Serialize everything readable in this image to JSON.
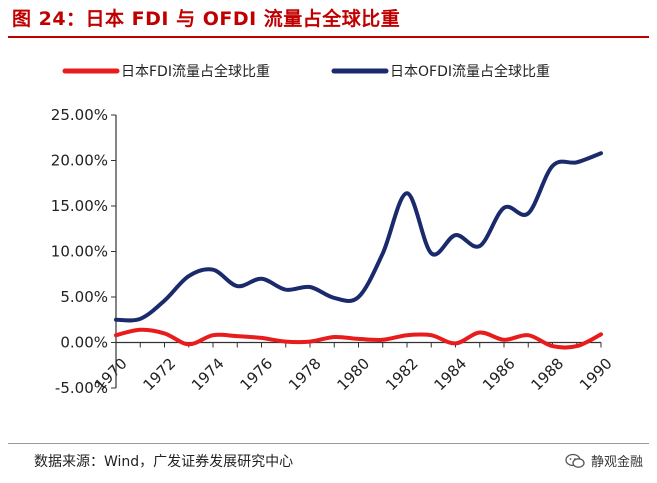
{
  "figure": {
    "title": "图 24：日本 FDI 与 OFDI 流量占全球比重",
    "source": "数据来源：Wind，广发证券发展研究中心",
    "watermark": "静观金融"
  },
  "colors": {
    "fdi": "#e81c1c",
    "ofdi": "#1a2a6c",
    "accent": "#c00000"
  },
  "chart_data": {
    "type": "line",
    "title": "",
    "xlabel": "",
    "ylabel": "",
    "x": [
      1970,
      1971,
      1972,
      1973,
      1974,
      1975,
      1976,
      1977,
      1978,
      1979,
      1980,
      1981,
      1982,
      1983,
      1984,
      1985,
      1986,
      1987,
      1988,
      1989,
      1990
    ],
    "xticks": [
      "1970",
      "1972",
      "1974",
      "1976",
      "1978",
      "1980",
      "1982",
      "1984",
      "1986",
      "1988",
      "1990"
    ],
    "ylim": [
      -5,
      25
    ],
    "yticks": [
      "-5.00%",
      "0.00%",
      "5.00%",
      "10.00%",
      "15.00%",
      "20.00%",
      "25.00%"
    ],
    "legend_position": "top",
    "series": [
      {
        "name": "日本FDI流量占全球比重",
        "color": "#e81c1c",
        "values": [
          0.8,
          1.4,
          1.0,
          -0.2,
          0.8,
          0.7,
          0.5,
          0.1,
          0.1,
          0.6,
          0.4,
          0.3,
          0.8,
          0.8,
          -0.1,
          1.1,
          0.3,
          0.8,
          -0.4,
          -0.4,
          0.9
        ]
      },
      {
        "name": "日本OFDI流量占全球比重",
        "color": "#1a2a6c",
        "values": [
          2.5,
          2.6,
          4.6,
          7.3,
          8.0,
          6.2,
          7.0,
          5.8,
          6.1,
          4.9,
          5.0,
          9.8,
          16.4,
          9.8,
          11.8,
          10.6,
          14.8,
          14.2,
          19.4,
          19.8,
          20.8
        ]
      }
    ]
  }
}
